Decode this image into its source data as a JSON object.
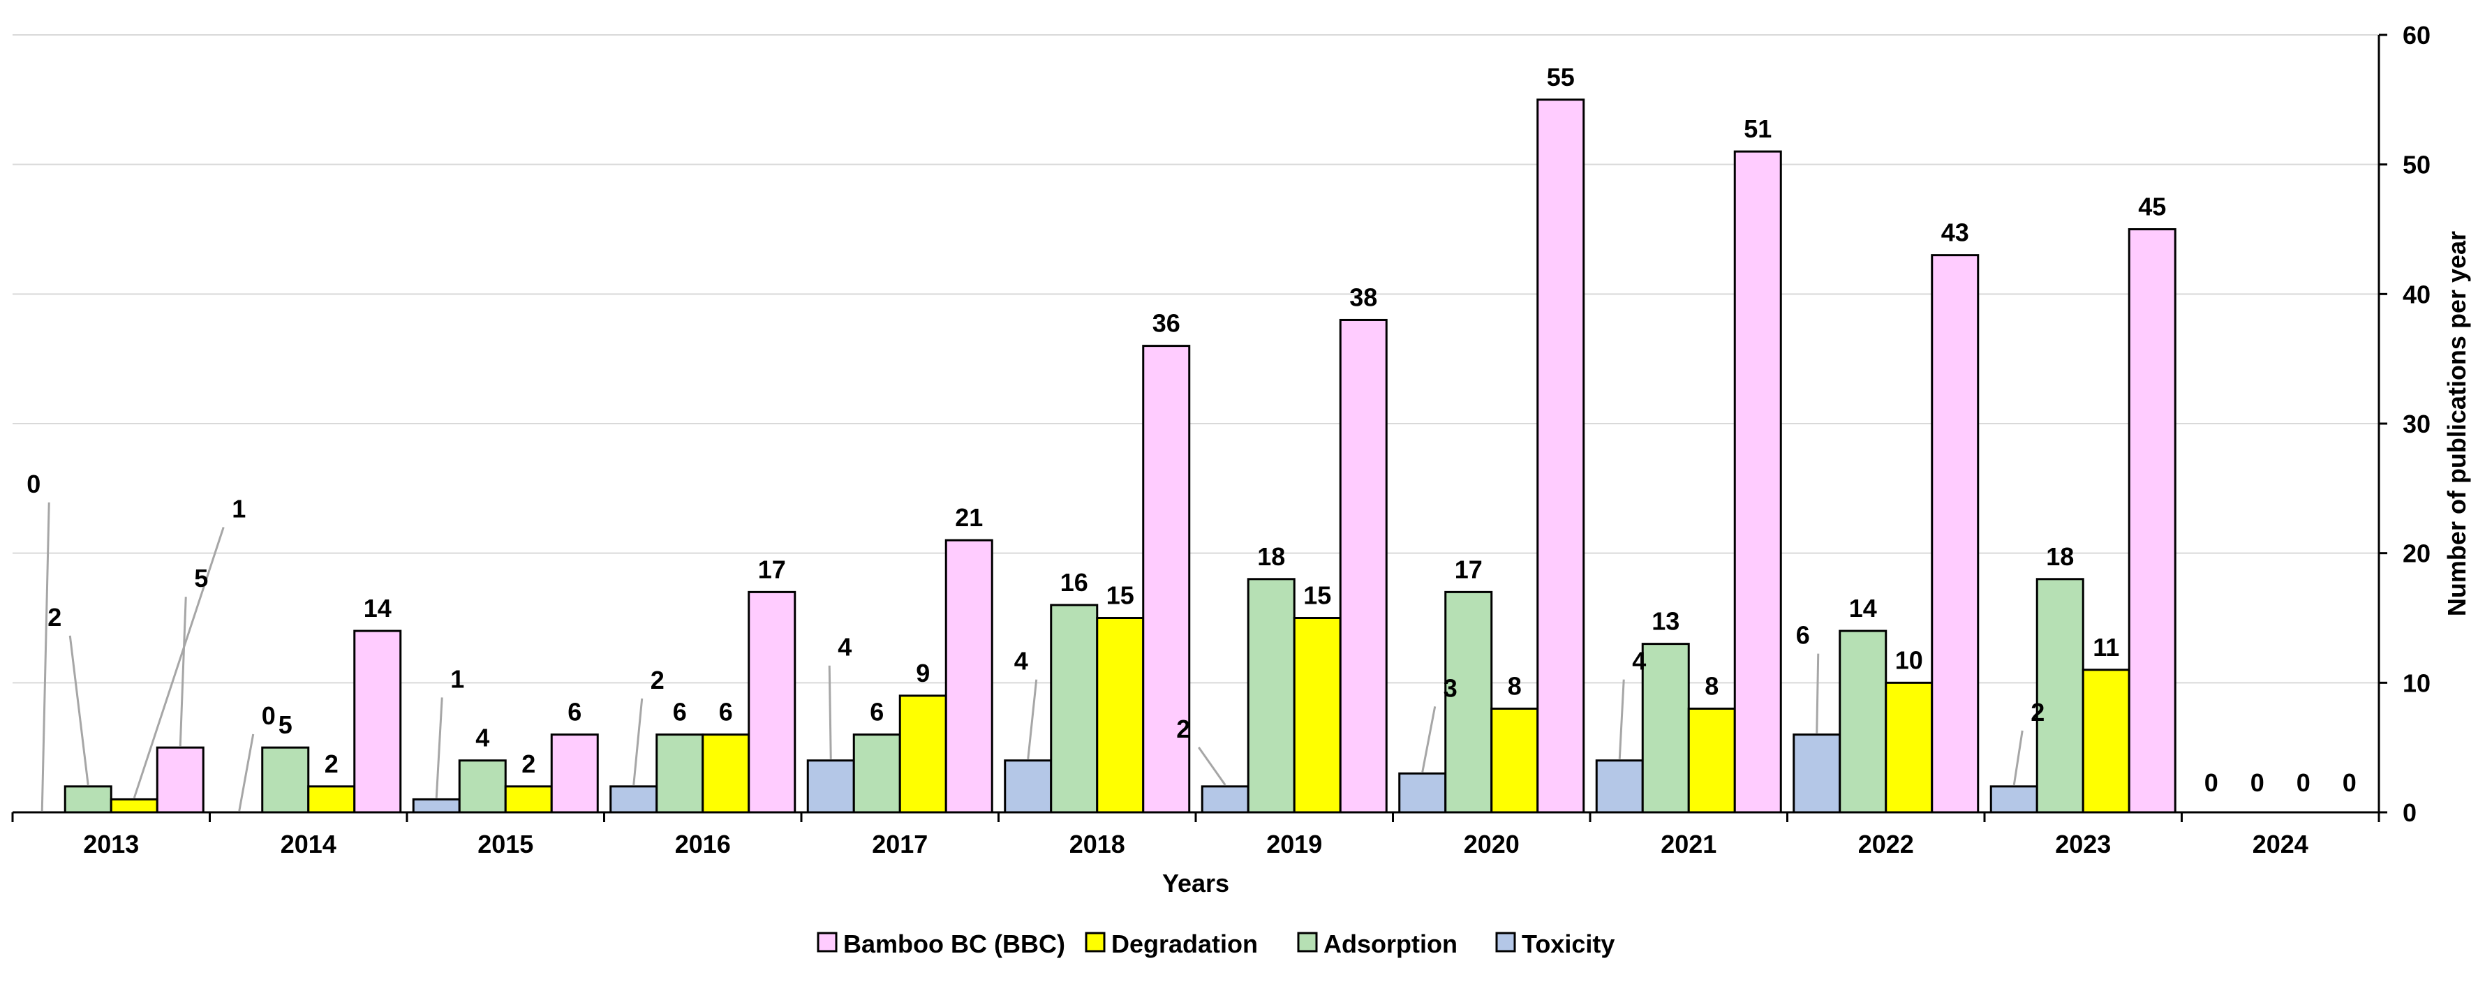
{
  "chart_data": {
    "type": "bar",
    "title": "",
    "xlabel": "Years",
    "ylabel": "Number of publications per year",
    "ylim": [
      0,
      60
    ],
    "yticks": [
      0,
      10,
      20,
      30,
      40,
      50,
      60
    ],
    "y_axis_side": "right",
    "grid": true,
    "legend_position": "bottom",
    "categories": [
      "2013",
      "2014",
      "2015",
      "2016",
      "2017",
      "2018",
      "2019",
      "2020",
      "2021",
      "2022",
      "2023",
      "2024"
    ],
    "series": [
      {
        "name": "Toxicity",
        "color": "#b4c7e7",
        "values": [
          0,
          0,
          1,
          2,
          4,
          4,
          2,
          3,
          4,
          6,
          2,
          0
        ]
      },
      {
        "name": "Adsorption",
        "color": "#b6e0b4",
        "values": [
          2,
          5,
          4,
          6,
          6,
          16,
          18,
          17,
          13,
          14,
          18,
          0
        ]
      },
      {
        "name": "Degradation",
        "color": "#ffff00",
        "values": [
          1,
          2,
          2,
          6,
          9,
          15,
          15,
          8,
          8,
          10,
          11,
          0
        ]
      },
      {
        "name": "Bamboo BC (BBC)",
        "color": "#ffccff",
        "values": [
          5,
          14,
          6,
          17,
          21,
          36,
          38,
          55,
          51,
          43,
          45,
          0
        ]
      }
    ],
    "legend_order": [
      "Bamboo BC (BBC)",
      "Degradation",
      "Adsorption",
      "Toxicity"
    ]
  }
}
